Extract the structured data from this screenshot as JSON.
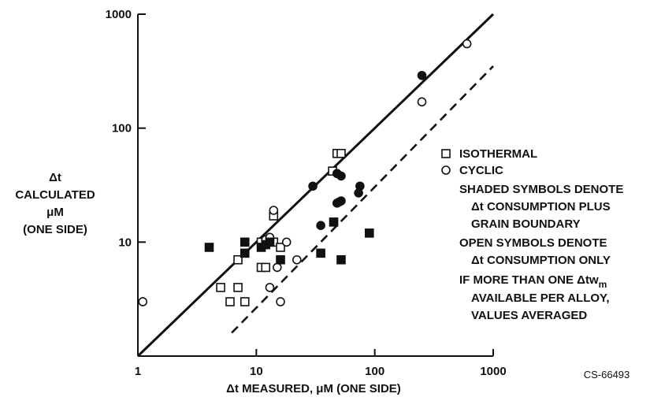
{
  "chart_data": {
    "type": "scatter",
    "x_scale": "log",
    "y_scale": "log",
    "xlim": [
      1,
      1000
    ],
    "ylim": [
      1,
      1000
    ],
    "x_ticks": [
      "1",
      "10",
      "100",
      "1000"
    ],
    "y_ticks": [
      "10",
      "100",
      "1000"
    ],
    "xlabel": "Δt  MEASURED, μM (ONE SIDE)",
    "ylabel": [
      "Δt",
      "CALCULATED",
      "μM",
      "(ONE SIDE)"
    ],
    "figure_id": "CS-66493",
    "legend": {
      "isothermal": "ISOTHERMAL",
      "cyclic": "CYCLIC",
      "shaded_1": "SHADED SYMBOLS DENOTE",
      "shaded_2": "Δt CONSUMPTION PLUS",
      "shaded_3": "GRAIN BOUNDARY",
      "open_1": "OPEN SYMBOLS DENOTE",
      "open_2": "Δt CONSUMPTION ONLY",
      "avg_1": "IF MORE THAN ONE  Δtw",
      "avg_1_sub": "m",
      "avg_2": "AVAILABLE PER ALLOY,",
      "avg_3": "VALUES AVERAGED"
    },
    "lines": [
      {
        "style": "solid",
        "points": [
          [
            1,
            1
          ],
          [
            1000,
            1000
          ]
        ]
      },
      {
        "style": "dashed",
        "points": [
          [
            6.2,
            1.6
          ],
          [
            1000,
            350
          ]
        ]
      }
    ],
    "series": [
      {
        "symbol": "square",
        "filled": false,
        "points": [
          [
            7,
            7
          ],
          [
            5,
            4
          ],
          [
            7,
            4
          ],
          [
            6,
            3
          ],
          [
            8,
            3
          ],
          [
            11,
            10
          ],
          [
            11,
            6
          ],
          [
            12,
            6
          ],
          [
            14,
            10
          ],
          [
            16,
            9
          ],
          [
            14,
            17
          ],
          [
            44,
            42
          ],
          [
            48,
            60
          ],
          [
            52,
            60
          ]
        ]
      },
      {
        "symbol": "circle",
        "filled": false,
        "points": [
          [
            1.1,
            3
          ],
          [
            12,
            10.5
          ],
          [
            13,
            11
          ],
          [
            13,
            4
          ],
          [
            14,
            19
          ],
          [
            15,
            6
          ],
          [
            16,
            3
          ],
          [
            18,
            10
          ],
          [
            22,
            7
          ],
          [
            250,
            170
          ],
          [
            600,
            550
          ]
        ]
      },
      {
        "symbol": "square",
        "filled": true,
        "points": [
          [
            4,
            9
          ],
          [
            8,
            10
          ],
          [
            8,
            8
          ],
          [
            11,
            9
          ],
          [
            12,
            9.5
          ],
          [
            13,
            10
          ],
          [
            16,
            7
          ],
          [
            35,
            8
          ],
          [
            45,
            15
          ],
          [
            52,
            7
          ],
          [
            90,
            12
          ]
        ]
      },
      {
        "symbol": "circle",
        "filled": true,
        "points": [
          [
            30,
            31
          ],
          [
            35,
            14
          ],
          [
            48,
            22
          ],
          [
            50,
            22.5
          ],
          [
            52,
            23
          ],
          [
            48,
            40
          ],
          [
            52,
            38
          ],
          [
            73,
            27
          ],
          [
            75,
            31
          ],
          [
            250,
            290
          ]
        ]
      }
    ]
  }
}
